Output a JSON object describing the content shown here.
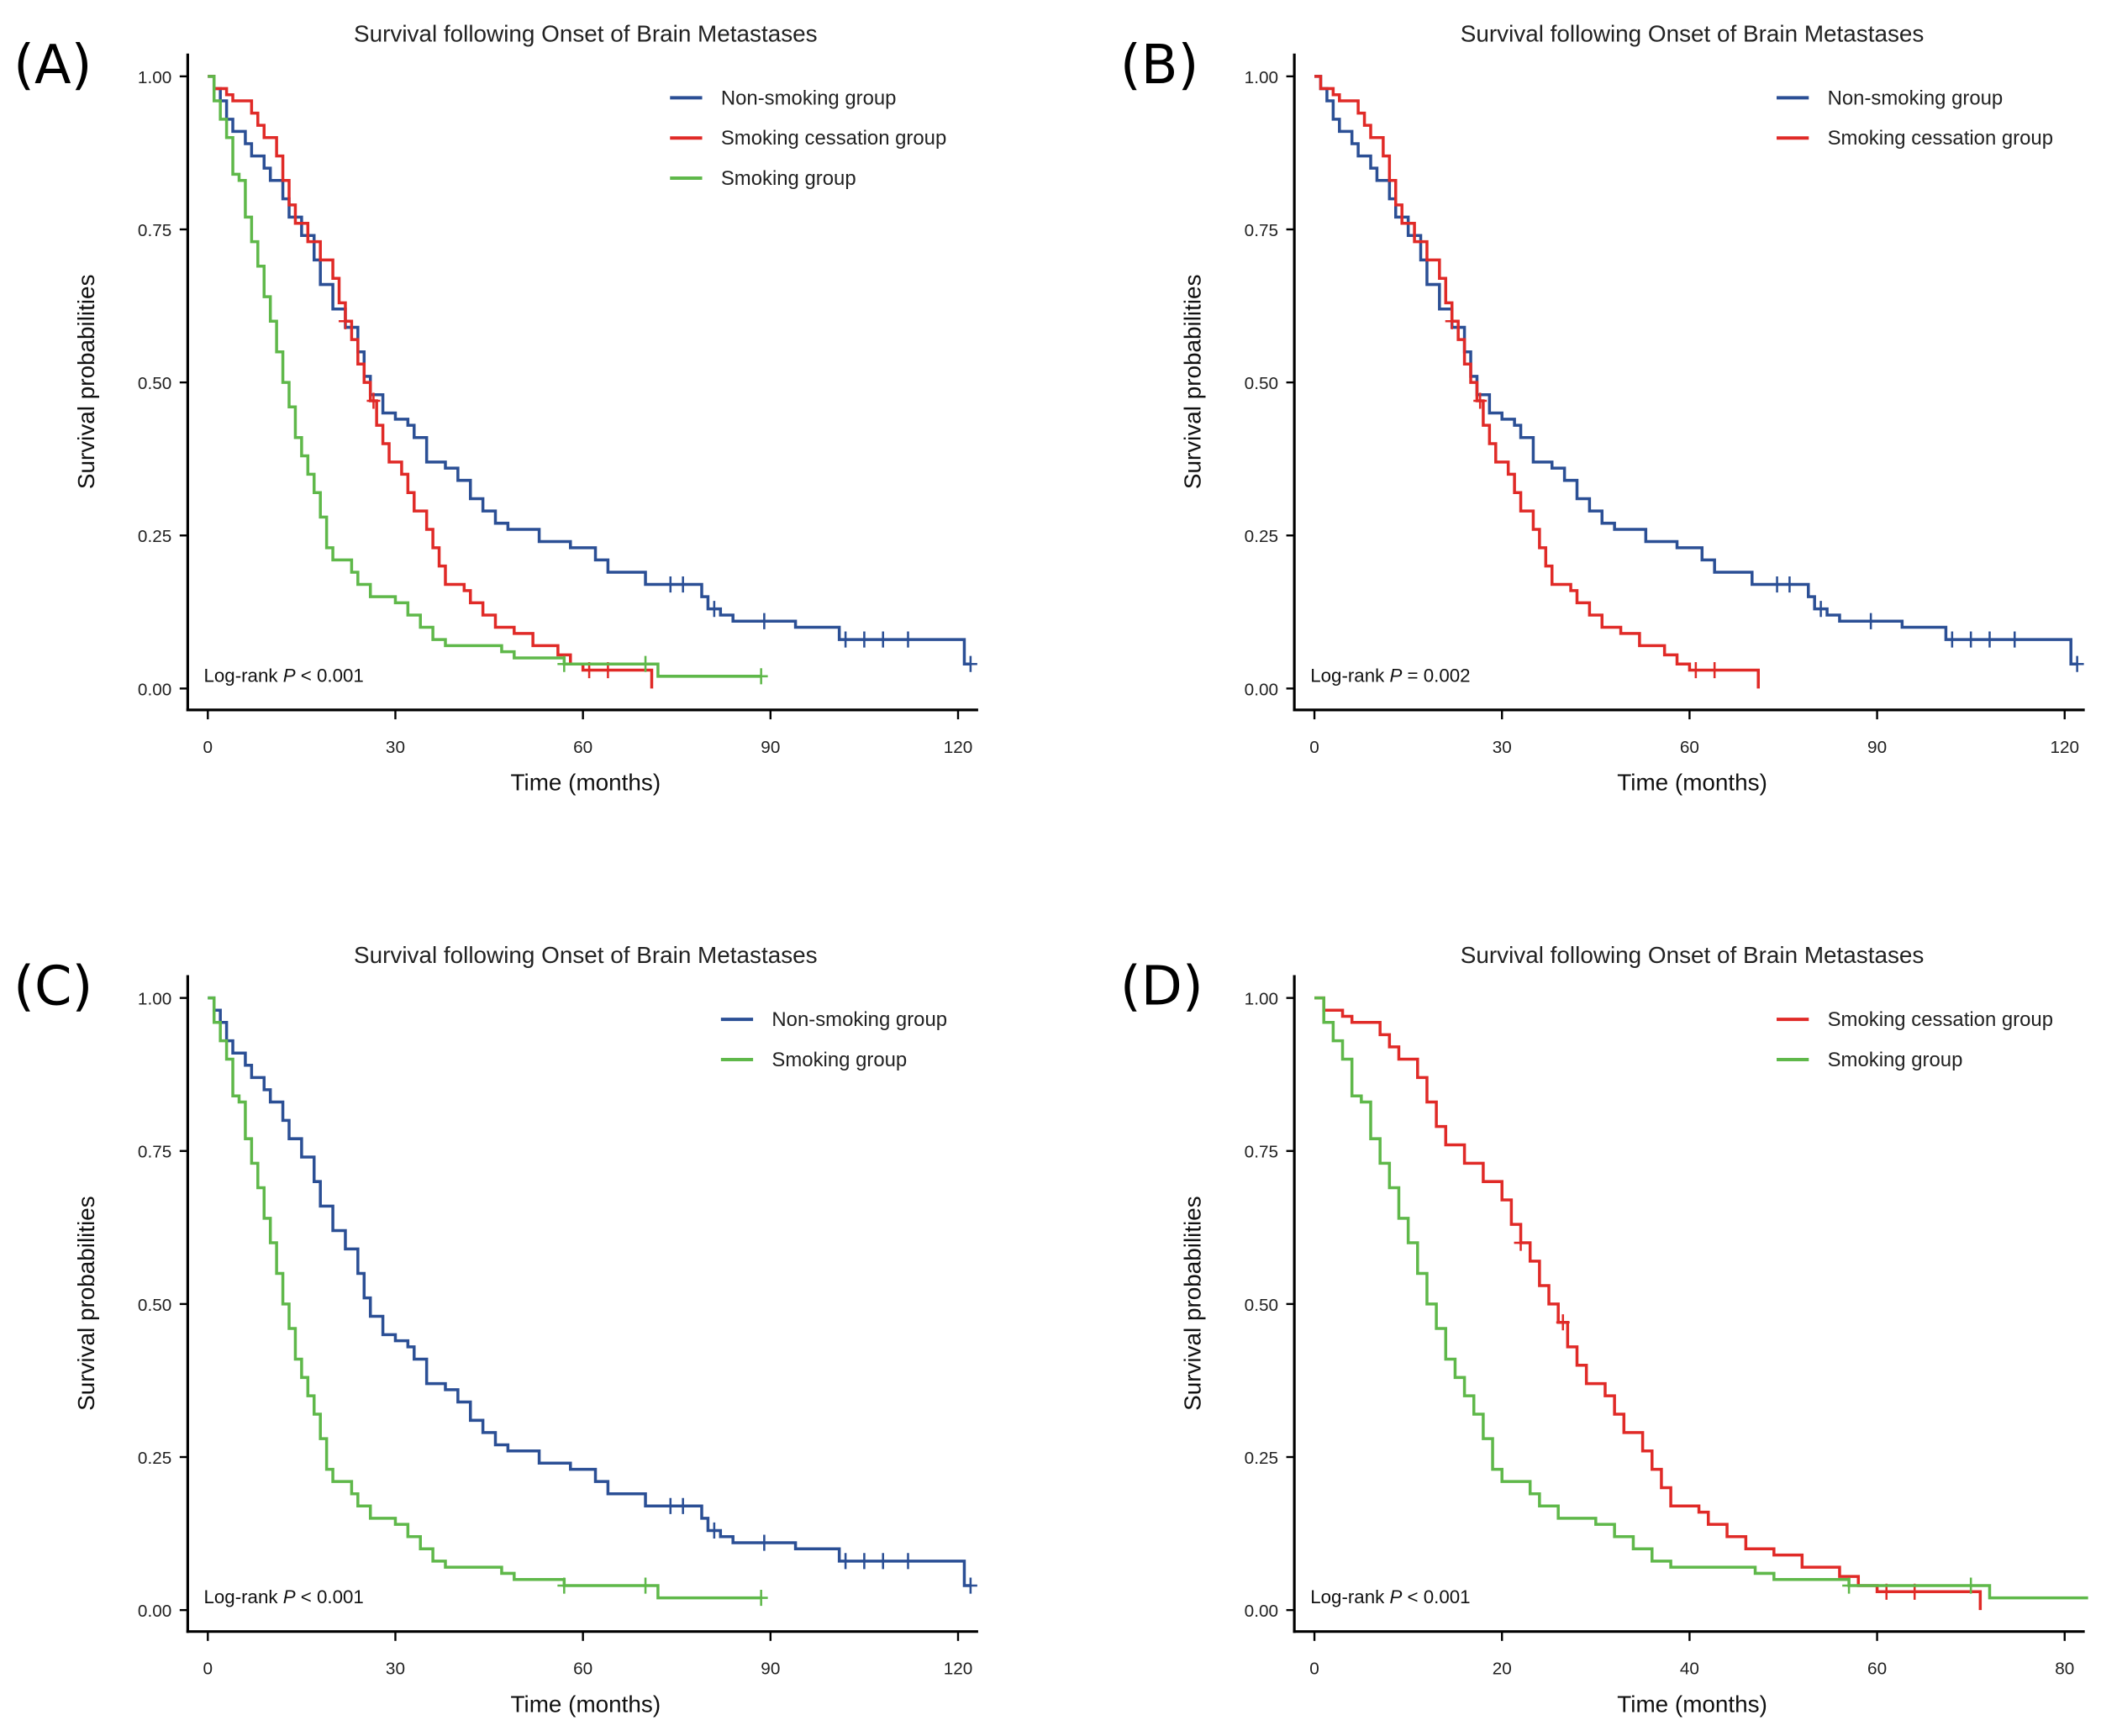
{
  "chart_data": {
    "type": "line",
    "subtype": "kaplan-meier",
    "title": "Survival following Onset of Brain Metastases",
    "xlabel": "Time (months)",
    "ylabel": "Survival probabilities",
    "yticks": [
      "0.00",
      "0.25",
      "0.50",
      "0.75",
      "1.00"
    ],
    "ylim": [
      0,
      1
    ],
    "logrank_prefix": "Log-rank",
    "p_symbol": "P",
    "groups": {
      "non": {
        "name": "Non-smoking group",
        "color": "#2b4f95",
        "steps": [
          [
            0,
            1.0
          ],
          [
            1,
            0.98
          ],
          [
            2,
            0.96
          ],
          [
            3,
            0.93
          ],
          [
            4,
            0.91
          ],
          [
            6,
            0.89
          ],
          [
            7,
            0.87
          ],
          [
            9,
            0.85
          ],
          [
            10,
            0.83
          ],
          [
            12,
            0.8
          ],
          [
            13,
            0.77
          ],
          [
            15,
            0.74
          ],
          [
            17,
            0.7
          ],
          [
            18,
            0.66
          ],
          [
            20,
            0.62
          ],
          [
            22,
            0.59
          ],
          [
            24,
            0.55
          ],
          [
            25,
            0.51
          ],
          [
            26,
            0.48
          ],
          [
            28,
            0.45
          ],
          [
            30,
            0.44
          ],
          [
            32,
            0.43
          ],
          [
            33,
            0.41
          ],
          [
            35,
            0.37
          ],
          [
            38,
            0.36
          ],
          [
            40,
            0.34
          ],
          [
            42,
            0.31
          ],
          [
            44,
            0.29
          ],
          [
            46,
            0.27
          ],
          [
            48,
            0.26
          ],
          [
            53,
            0.24
          ],
          [
            58,
            0.23
          ],
          [
            62,
            0.21
          ],
          [
            64,
            0.19
          ],
          [
            70,
            0.17
          ],
          [
            79,
            0.15
          ],
          [
            80,
            0.13
          ],
          [
            82,
            0.12
          ],
          [
            84,
            0.11
          ],
          [
            94,
            0.1
          ],
          [
            101,
            0.08
          ],
          [
            121,
            0.04
          ]
        ],
        "end": 122,
        "censored": [
          74,
          76,
          81,
          89,
          102,
          105,
          108,
          112,
          122
        ]
      },
      "cess": {
        "name": "Smoking cessation group",
        "color": "#e02a27",
        "steps": [
          [
            0,
            1.0
          ],
          [
            1,
            0.98
          ],
          [
            3,
            0.97
          ],
          [
            4,
            0.96
          ],
          [
            7,
            0.94
          ],
          [
            8,
            0.92
          ],
          [
            9,
            0.9
          ],
          [
            11,
            0.87
          ],
          [
            12,
            0.83
          ],
          [
            13,
            0.79
          ],
          [
            14,
            0.76
          ],
          [
            16,
            0.73
          ],
          [
            18,
            0.7
          ],
          [
            20,
            0.67
          ],
          [
            21,
            0.63
          ],
          [
            22,
            0.6
          ],
          [
            23,
            0.57
          ],
          [
            24,
            0.53
          ],
          [
            25,
            0.5
          ],
          [
            26,
            0.47
          ],
          [
            27,
            0.43
          ],
          [
            28,
            0.4
          ],
          [
            29,
            0.37
          ],
          [
            31,
            0.35
          ],
          [
            32,
            0.32
          ],
          [
            33,
            0.29
          ],
          [
            35,
            0.26
          ],
          [
            36,
            0.23
          ],
          [
            37,
            0.2
          ],
          [
            38,
            0.17
          ],
          [
            41,
            0.16
          ],
          [
            42,
            0.14
          ],
          [
            44,
            0.12
          ],
          [
            46,
            0.1
          ],
          [
            49,
            0.09
          ],
          [
            52,
            0.07
          ],
          [
            56,
            0.055
          ],
          [
            58,
            0.04
          ],
          [
            60,
            0.03
          ],
          [
            71,
            0.0
          ]
        ],
        "end": 71,
        "censored": [
          22,
          26.5,
          61,
          64
        ]
      },
      "smk": {
        "name": "Smoking group",
        "color": "#5fb84a",
        "steps": [
          [
            0,
            1.0
          ],
          [
            1,
            0.96
          ],
          [
            2,
            0.93
          ],
          [
            3,
            0.9
          ],
          [
            4,
            0.84
          ],
          [
            5,
            0.83
          ],
          [
            6,
            0.77
          ],
          [
            7,
            0.73
          ],
          [
            8,
            0.69
          ],
          [
            9,
            0.64
          ],
          [
            10,
            0.6
          ],
          [
            11,
            0.55
          ],
          [
            12,
            0.5
          ],
          [
            13,
            0.46
          ],
          [
            14,
            0.41
          ],
          [
            15,
            0.38
          ],
          [
            16,
            0.35
          ],
          [
            17,
            0.32
          ],
          [
            18,
            0.28
          ],
          [
            19,
            0.23
          ],
          [
            20,
            0.21
          ],
          [
            23,
            0.19
          ],
          [
            24,
            0.17
          ],
          [
            26,
            0.15
          ],
          [
            30,
            0.14
          ],
          [
            32,
            0.12
          ],
          [
            34,
            0.1
          ],
          [
            36,
            0.08
          ],
          [
            38,
            0.07
          ],
          [
            47,
            0.06
          ],
          [
            49,
            0.05
          ],
          [
            57,
            0.04
          ],
          [
            72,
            0.02
          ]
        ],
        "end": 88.5,
        "censored": [
          57,
          70,
          88.5
        ]
      }
    },
    "panels": [
      {
        "label": "(A)",
        "series": [
          "non",
          "cess",
          "smk"
        ],
        "p_text": "< 0.001",
        "xticks": [
          0,
          30,
          60,
          90,
          120
        ],
        "xlim": [
          0,
          120
        ]
      },
      {
        "label": "(B)",
        "series": [
          "non",
          "cess"
        ],
        "p_text": "= 0.002",
        "xticks": [
          0,
          30,
          60,
          90,
          120
        ],
        "xlim": [
          0,
          120
        ]
      },
      {
        "label": "(C)",
        "series": [
          "non",
          "smk"
        ],
        "p_text": "< 0.001",
        "xticks": [
          0,
          30,
          60,
          90,
          120
        ],
        "xlim": [
          0,
          120
        ]
      },
      {
        "label": "(D)",
        "series": [
          "cess",
          "smk"
        ],
        "p_text": "< 0.001",
        "xticks": [
          0,
          20,
          40,
          60,
          80
        ],
        "xlim": [
          0,
          80
        ]
      }
    ]
  }
}
